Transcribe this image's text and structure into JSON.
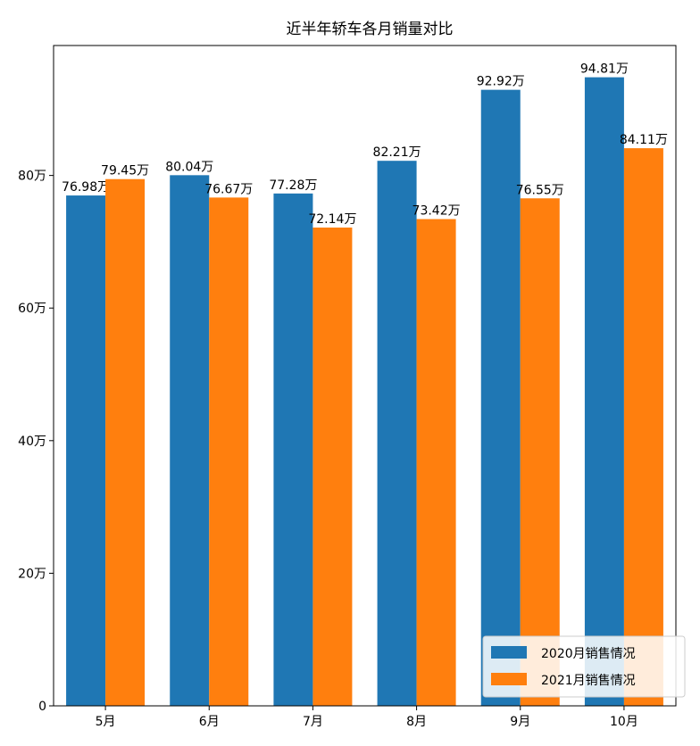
{
  "chart_data": {
    "type": "bar",
    "title": "近半年轿车各月销量对比",
    "categories": [
      "5月",
      "6月",
      "7月",
      "8月",
      "9月",
      "10月"
    ],
    "series": [
      {
        "name": "2020月销售情况",
        "color": "#1f77b4",
        "values": [
          76.98,
          80.04,
          77.28,
          82.21,
          92.92,
          94.81
        ],
        "labels": [
          "76.98万",
          "80.04万",
          "77.28万",
          "82.21万",
          "92.92万",
          "94.81万"
        ]
      },
      {
        "name": "2021月销售情况",
        "color": "#ff7f0e",
        "values": [
          79.45,
          76.67,
          72.14,
          73.42,
          76.55,
          84.11
        ],
        "labels": [
          "79.45万",
          "76.67万",
          "72.14万",
          "73.42万",
          "76.55万",
          "84.11万"
        ]
      }
    ],
    "yticks": [
      0,
      20,
      40,
      60,
      80
    ],
    "ytick_labels": [
      "0",
      "20万",
      "40万",
      "60万",
      "80万"
    ],
    "ylim": [
      0,
      99.6
    ],
    "grid": false,
    "legend": "lower-right"
  }
}
